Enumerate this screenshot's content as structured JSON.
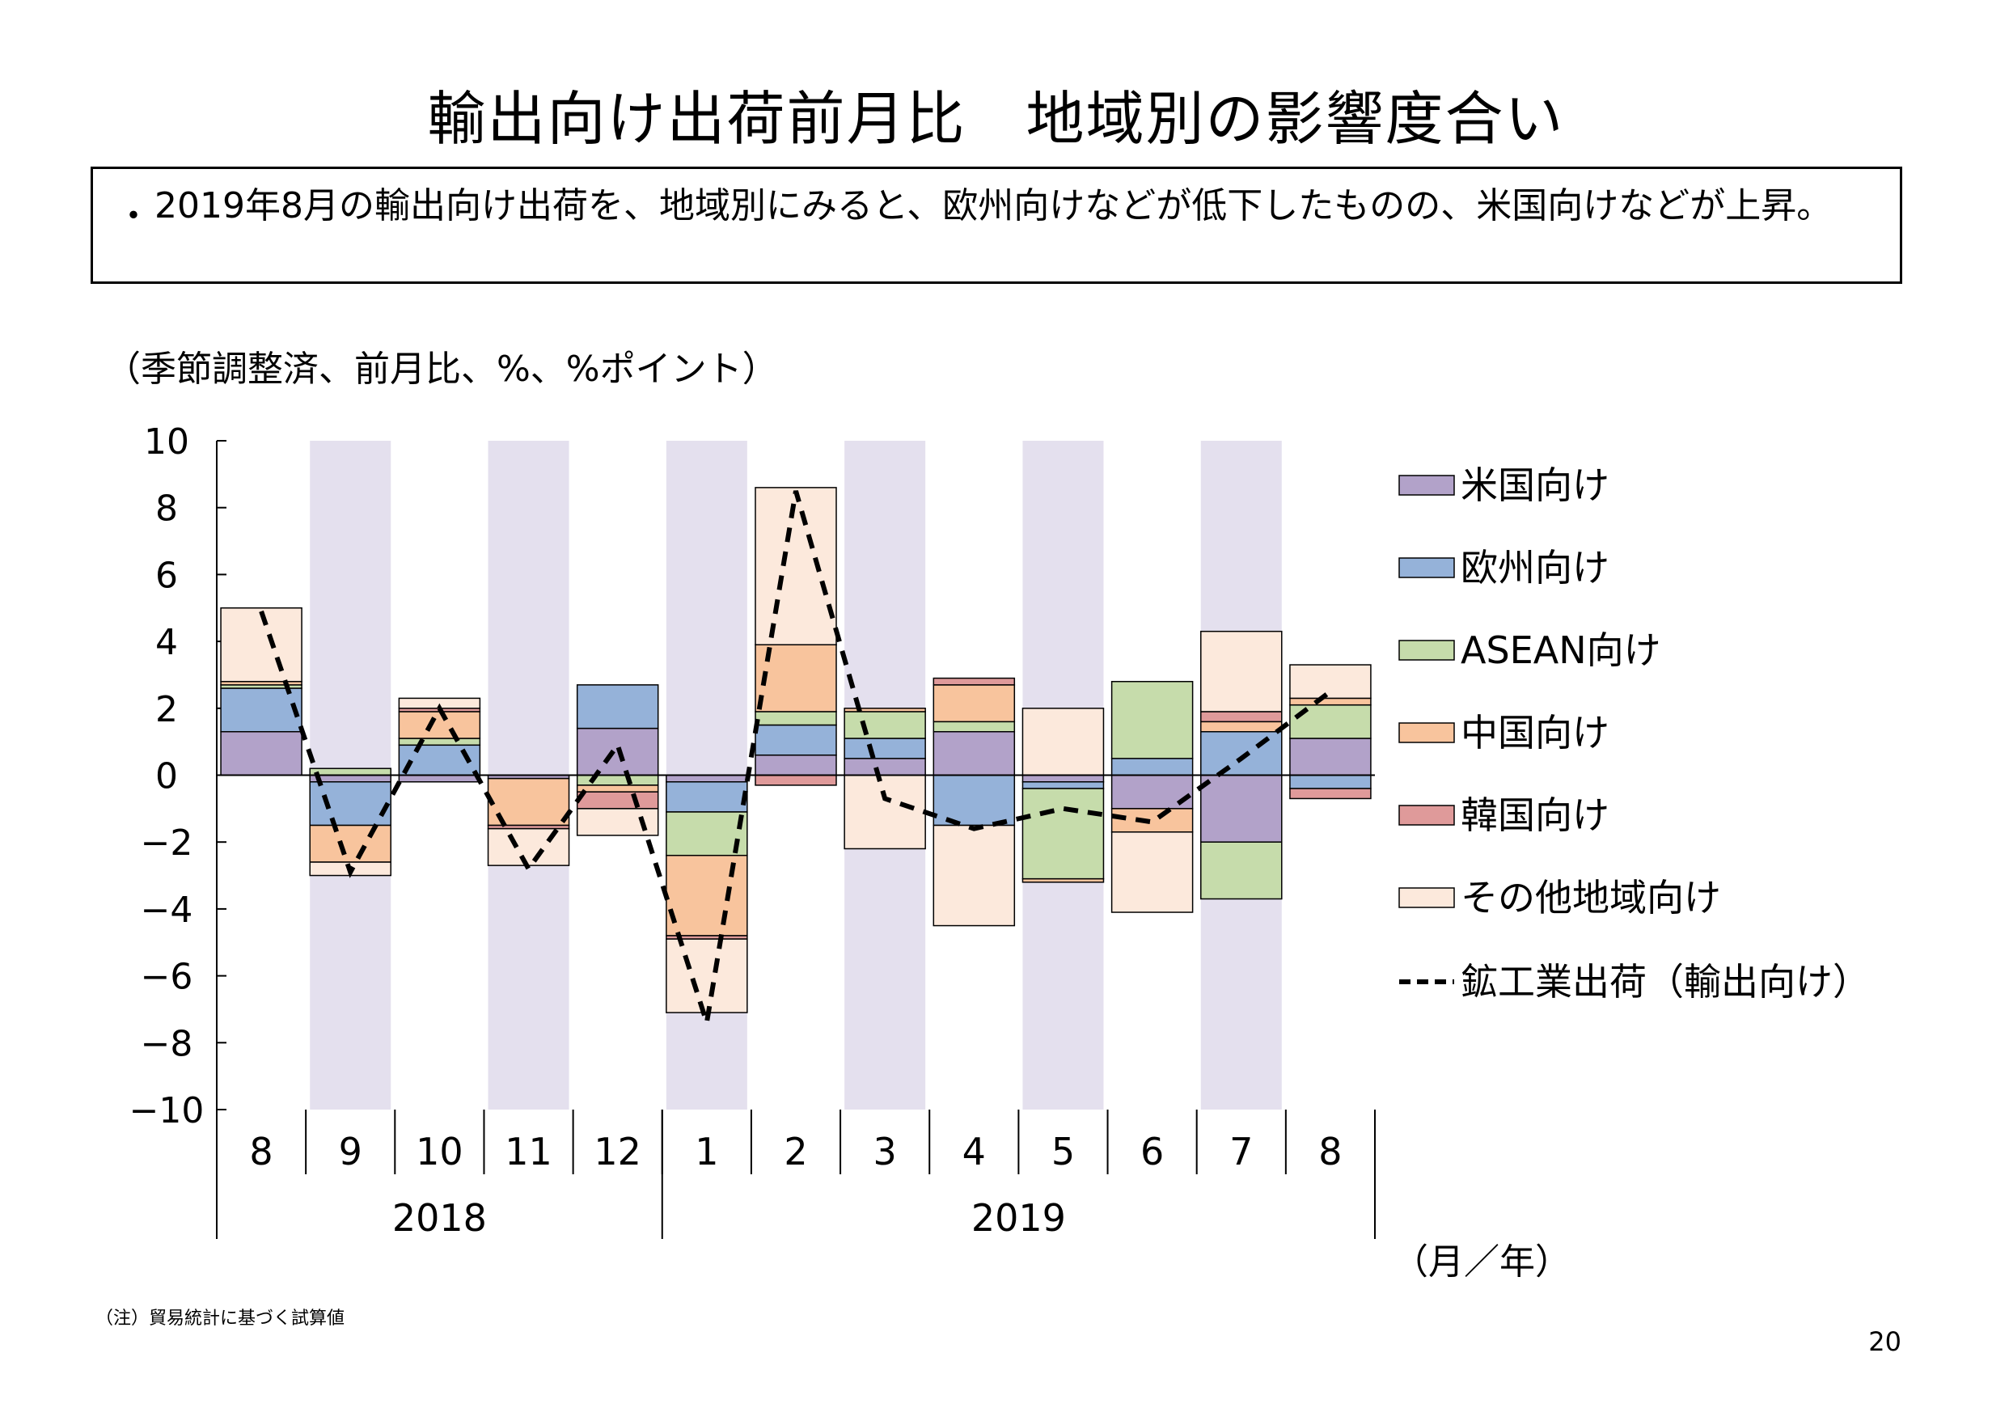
{
  "page_title": "輸出向け出荷前月比　地域別の影響度合い",
  "summary": {
    "bullet": "・",
    "text": "2019年8月の輸出向け出荷を、地域別にみると、欧州向けなどが低下したものの、米国向けなどが上昇。"
  },
  "unit_label": "（季節調整済、前月比、%、%ポイント）",
  "note": "（注）貿易統計に基づく試算値",
  "page_number": "20",
  "chart_data": {
    "type": "bar",
    "stacked": true,
    "categories": [
      "8",
      "9",
      "10",
      "11",
      "12",
      "1",
      "2",
      "3",
      "4",
      "5",
      "6",
      "7",
      "8"
    ],
    "years": [
      {
        "label": "2018",
        "months": [
          "8",
          "9",
          "10",
          "11",
          "12"
        ]
      },
      {
        "label": "2019",
        "months": [
          "1",
          "2",
          "3",
          "4",
          "5",
          "6",
          "7",
          "8"
        ]
      }
    ],
    "xlabel": "（月／年）",
    "ylim": [
      -10,
      10
    ],
    "yticks": [
      "10",
      "8",
      "6",
      "4",
      "2",
      "0",
      "−2",
      "−4",
      "−6",
      "−8",
      "−10"
    ],
    "ytick_values": [
      10,
      8,
      6,
      4,
      2,
      0,
      -2,
      -4,
      -6,
      -8,
      -10
    ],
    "shaded_categories": [
      1,
      3,
      5,
      7,
      9,
      11
    ],
    "shade_color": "#e4e0ee",
    "series": [
      {
        "name": "米国向け",
        "color": "#b2a2c9",
        "values": [
          1.3,
          -0.2,
          -0.2,
          -0.1,
          1.4,
          -0.2,
          0.6,
          0.5,
          1.3,
          -0.2,
          -1.0,
          -2.0,
          1.1
        ]
      },
      {
        "name": "欧州向け",
        "color": "#95b2d9",
        "values": [
          1.3,
          -1.3,
          0.9,
          0.0,
          1.3,
          -0.9,
          0.9,
          0.6,
          -1.5,
          -0.2,
          0.5,
          1.3,
          -0.4
        ]
      },
      {
        "name": "ASEAN向け",
        "color": "#c6dcab",
        "values": [
          0.1,
          0.2,
          0.2,
          0.0,
          -0.3,
          -1.3,
          0.4,
          0.8,
          0.3,
          -2.7,
          2.3,
          -1.7,
          1.0
        ]
      },
      {
        "name": "中国向け",
        "color": "#f8c49d",
        "values": [
          0.1,
          -1.1,
          0.8,
          -1.4,
          -0.2,
          -2.4,
          2.0,
          0.1,
          1.1,
          -0.1,
          -0.7,
          0.3,
          0.2
        ]
      },
      {
        "name": "韓国向け",
        "color": "#df9a9a",
        "values": [
          0.0,
          0.0,
          0.1,
          -0.1,
          -0.5,
          -0.1,
          -0.3,
          0.0,
          0.2,
          0.0,
          0.0,
          0.3,
          -0.3
        ]
      },
      {
        "name": "その他地域向け",
        "color": "#fce9dc",
        "values": [
          2.2,
          -0.4,
          0.3,
          -1.1,
          -0.8,
          -2.2,
          4.7,
          -2.2,
          -3.0,
          2.0,
          -2.4,
          2.4,
          1.0
        ]
      }
    ],
    "line": {
      "name": "鉱工業出荷（輸出向け）",
      "color": "#000000",
      "style": "dashed",
      "values": [
        4.9,
        -2.9,
        2.0,
        -2.8,
        0.9,
        -7.4,
        8.5,
        -0.7,
        -1.6,
        -1.0,
        -1.4,
        0.5,
        2.5
      ]
    }
  }
}
